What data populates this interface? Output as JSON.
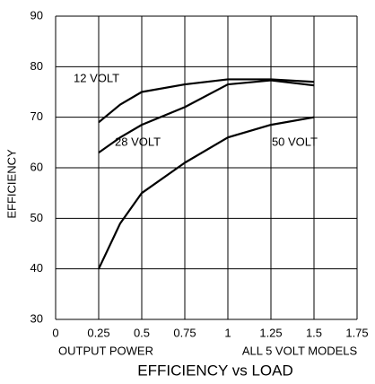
{
  "chart_data": {
    "type": "line",
    "title": "EFFICIENCY vs LOAD",
    "ylabel": "EFFICIENCY",
    "xlabel": "OUTPUT POWER",
    "xnote": "ALL 5 VOLT MODELS",
    "x": [
      0.25,
      0.375,
      0.5,
      0.75,
      1,
      1.25,
      1.5
    ],
    "series": [
      {
        "name": "12 VOLT",
        "color": "#000000",
        "values": [
          69,
          72.5,
          75,
          76.5,
          77.5,
          77.5,
          77
        ]
      },
      {
        "name": "28 VOLT",
        "color": "#000000",
        "values": [
          63,
          66,
          68.5,
          72,
          76.5,
          77.3,
          76.3
        ]
      },
      {
        "name": "50 VOLT",
        "color": "#000000",
        "values": [
          40,
          49,
          55,
          61,
          66,
          68.5,
          70
        ]
      }
    ],
    "xlim": [
      0,
      1.75
    ],
    "xticks": [
      0,
      0.25,
      0.5,
      0.75,
      1,
      1.25,
      1.5,
      1.75
    ],
    "ylim": [
      30,
      90
    ],
    "yticks": [
      30,
      40,
      50,
      60,
      70,
      80,
      90
    ],
    "grid": true
  }
}
